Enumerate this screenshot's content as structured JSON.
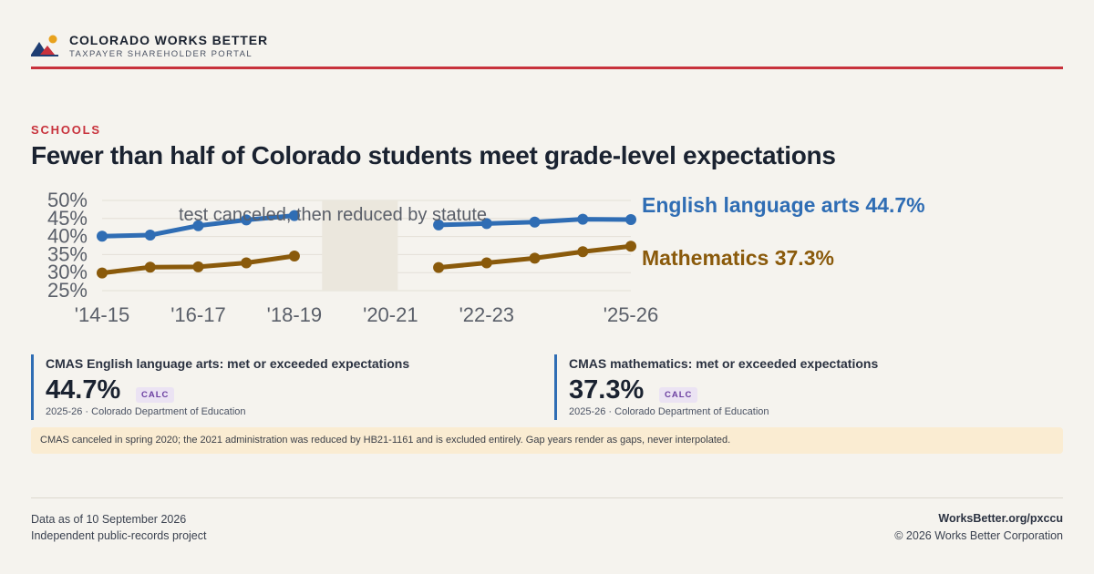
{
  "header": {
    "brand": "COLORADO WORKS BETTER",
    "tagline": "TAXPAYER SHAREHOLDER PORTAL",
    "logo_icon": "mountain-sun-logo-icon"
  },
  "kicker": "SCHOOLS",
  "title": "Fewer than half of Colorado students meet grade-level expectations",
  "colors": {
    "ela": "#2f6db4",
    "math": "#8a5a0b",
    "accent": "#c8323c",
    "badge": "#6b3fa0",
    "note_bg": "#faecd2"
  },
  "chart_data": {
    "type": "line",
    "x": [
      "'14-15",
      "'15-16",
      "'16-17",
      "'17-18",
      "'18-19",
      "'19-20",
      "'20-21",
      "'21-22",
      "'22-23",
      "'23-24",
      "'24-25",
      "'25-26"
    ],
    "x_tick_labels": [
      "'14-15",
      "'16-17",
      "'18-19",
      "'20-21",
      "'22-23",
      "'25-26"
    ],
    "ylim": [
      25,
      50
    ],
    "y_tick_labels": [
      "50%",
      "45%",
      "40%",
      "35%",
      "30%",
      "25%"
    ],
    "y_ticks": [
      50,
      45,
      40,
      35,
      30,
      25
    ],
    "shaded_band": {
      "from": "'19-20",
      "to": "'20-21",
      "label": "test canceled, then reduced by statute"
    },
    "series": [
      {
        "name": "English language arts",
        "end_label": "English language arts 44.7%",
        "values": [
          40.1,
          40.4,
          43.0,
          44.6,
          45.8,
          null,
          null,
          43.2,
          43.6,
          44.0,
          44.8,
          44.7
        ]
      },
      {
        "name": "Mathematics",
        "end_label": "Mathematics 37.3%",
        "values": [
          29.9,
          31.5,
          31.6,
          32.7,
          34.6,
          null,
          null,
          31.4,
          32.7,
          34.0,
          35.8,
          37.3
        ]
      }
    ],
    "grid": true
  },
  "cards": [
    {
      "label": "CMAS English language arts: met or exceeded expectations",
      "value": "44.7%",
      "badge": "CALC",
      "source": "2025-26 · Colorado Department of Education"
    },
    {
      "label": "CMAS mathematics: met or exceeded expectations",
      "value": "37.3%",
      "badge": "CALC",
      "source": "2025-26 · Colorado Department of Education"
    }
  ],
  "note": "CMAS canceled in spring 2020; the 2021 administration was reduced by HB21-1161 and is excluded entirely. Gap years render as gaps, never interpolated.",
  "footer": {
    "as_of": "Data as of 10 September 2026",
    "project": "Independent public-records project",
    "url": "WorksBetter.org/pxccu",
    "copyright": "© 2026 Works Better Corporation"
  }
}
